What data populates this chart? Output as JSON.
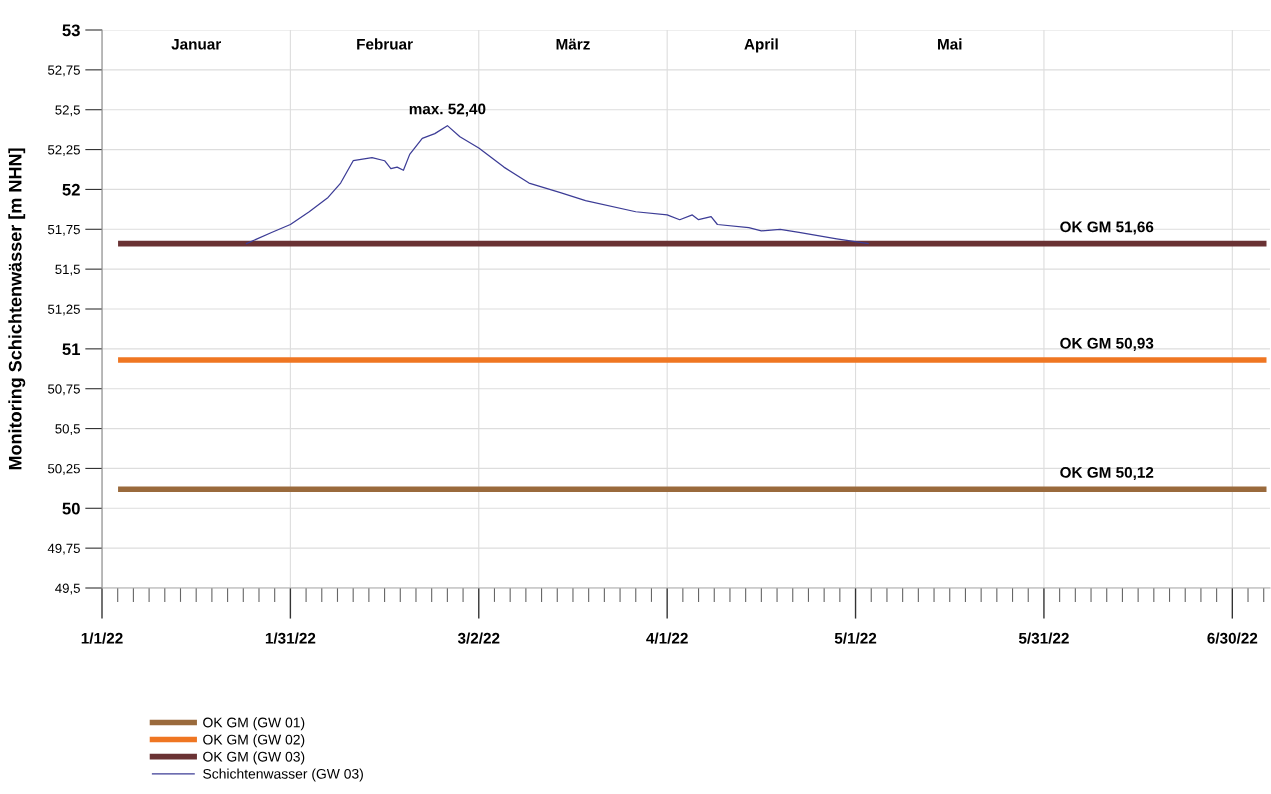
{
  "chart_data": {
    "type": "line",
    "ylabel": "Monitoring Schichtenwässer [m NHN]",
    "xlim": [
      "2022-01-01",
      "2022-07-06"
    ],
    "xticks": [
      {
        "value": "2022-01-01",
        "label": "1/1/22"
      },
      {
        "value": "2022-01-31",
        "label": "1/31/22"
      },
      {
        "value": "2022-03-02",
        "label": "3/2/22"
      },
      {
        "value": "2022-04-01",
        "label": "4/1/22"
      },
      {
        "value": "2022-05-01",
        "label": "5/1/22"
      },
      {
        "value": "2022-05-31",
        "label": "5/31/22"
      },
      {
        "value": "2022-06-30",
        "label": "6/30/22"
      }
    ],
    "ylim": [
      49.5,
      53
    ],
    "yticks": [
      {
        "value": 49.5,
        "label": "49,5"
      },
      {
        "value": 49.75,
        "label": "49,75"
      },
      {
        "value": 50,
        "label": "50"
      },
      {
        "value": 50.25,
        "label": "50,25"
      },
      {
        "value": 50.5,
        "label": "50,5"
      },
      {
        "value": 50.75,
        "label": "50,75"
      },
      {
        "value": 51,
        "label": "51"
      },
      {
        "value": 51.25,
        "label": "51,25"
      },
      {
        "value": 51.5,
        "label": "51,5"
      },
      {
        "value": 51.75,
        "label": "51,75"
      },
      {
        "value": 52,
        "label": "52"
      },
      {
        "value": 52.25,
        "label": "52,25"
      },
      {
        "value": 52.5,
        "label": "52,5"
      },
      {
        "value": 52.75,
        "label": "52,75"
      },
      {
        "value": 53,
        "label": "53"
      }
    ],
    "grid": true,
    "legend": "bottom left",
    "marker": "none",
    "line_style": "solid",
    "series": [
      {
        "name": "OK GM (GW 01)",
        "color": "#9a6a3c",
        "x": [
          "2022-01-04",
          "2022-07-05"
        ],
        "values": [
          50.12,
          50.12
        ]
      },
      {
        "name": "OK GM (GW 02)",
        "color": "#ef7622",
        "x": [
          "2022-01-04",
          "2022-07-05"
        ],
        "values": [
          50.93,
          50.93
        ]
      },
      {
        "name": "OK GM (GW 03)",
        "color": "#6a3234",
        "x": [
          "2022-01-04",
          "2022-07-05"
        ],
        "values": [
          51.66,
          51.66
        ]
      },
      {
        "name": "Schichtenwasser (GW 03)",
        "color": "#3c3c96",
        "x": [
          "2022-01-24",
          "2022-01-28",
          "2022-01-31",
          "2022-02-03",
          "2022-02-06",
          "2022-02-08",
          "2022-02-10",
          "2022-02-13",
          "2022-02-15",
          "2022-02-16",
          "2022-02-17",
          "2022-02-18",
          "2022-02-19",
          "2022-02-21",
          "2022-02-23",
          "2022-02-25",
          "2022-02-27",
          "2022-03-02",
          "2022-03-06",
          "2022-03-10",
          "2022-03-15",
          "2022-03-19",
          "2022-03-27",
          "2022-04-01",
          "2022-04-03",
          "2022-04-05",
          "2022-04-06",
          "2022-04-08",
          "2022-04-09",
          "2022-04-14",
          "2022-04-16",
          "2022-04-19",
          "2022-04-22",
          "2022-04-28",
          "2022-05-03"
        ],
        "values": [
          51.66,
          51.73,
          51.78,
          51.86,
          51.95,
          52.04,
          52.18,
          52.2,
          52.18,
          52.13,
          52.14,
          52.12,
          52.22,
          52.32,
          52.35,
          52.4,
          52.33,
          52.26,
          52.14,
          52.04,
          51.98,
          51.93,
          51.86,
          51.84,
          51.81,
          51.84,
          51.81,
          51.83,
          51.78,
          51.76,
          51.74,
          51.75,
          51.73,
          51.69,
          51.66
        ]
      }
    ],
    "annotations": [
      "Januar",
      "Februar",
      "März",
      "April",
      "Mai",
      {
        "text": "max. 52,40",
        "x": "2022-02-25",
        "y": 52.4
      },
      {
        "text": "OK GM 51,66",
        "x": "2022-06-10",
        "y": 51.66
      },
      {
        "text": "OK GM 50,93",
        "x": "2022-06-10",
        "y": 50.93
      },
      {
        "text": "OK GM 50,12",
        "x": "2022-06-10",
        "y": 50.12
      }
    ]
  }
}
